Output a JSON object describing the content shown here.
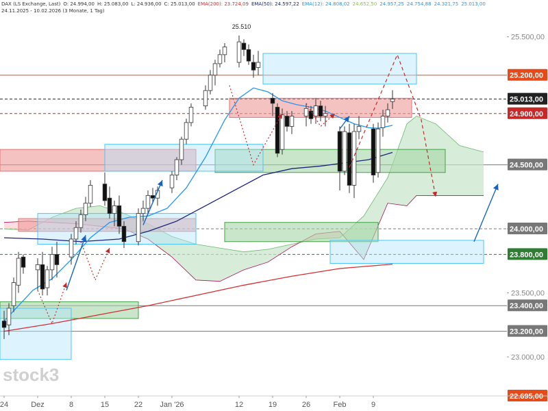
{
  "header": {
    "line1": [
      {
        "text": "DAX (LS Exchange, Last)",
        "color": "#333333"
      },
      {
        "text": "O: 24.994,00",
        "color": "#333333"
      },
      {
        "text": "H: 25.083,00",
        "color": "#333333"
      },
      {
        "text": "L: 24.936,00",
        "color": "#333333"
      },
      {
        "text": "C: 25.013,00",
        "color": "#333333"
      },
      {
        "text": "EMA(200): 23.724,09",
        "color": "#d32f2f"
      },
      {
        "text": "EMA(50): 24.597,22",
        "color": "#1a237e"
      },
      {
        "text": "EMA(12): 24.808,02",
        "color": "#2196f3"
      },
      {
        "text": "24.652,50",
        "color": "#8bc34a"
      },
      {
        "text": "24.957,25",
        "color": "#2196f3"
      },
      {
        "text": "24.754,88",
        "color": "#2196f3"
      },
      {
        "text": "24.321,75",
        "color": "#2196f3"
      },
      {
        "text": "25.013,00",
        "color": "#2196f3"
      }
    ],
    "line2": "24.11.2025 - 10.02.2026   (3 Monate, 1 Tag)"
  },
  "watermark": "stock3",
  "chart_data": {
    "type": "candlestick",
    "instrument": "DAX",
    "ylim": [
      22695,
      25680
    ],
    "y_ticks": [
      "25.500,00",
      "25.000,00",
      "24.500,00",
      "24.000,00",
      "23.500,00",
      "23.000,00"
    ],
    "y_tick_values": [
      25500,
      25000,
      24500,
      24000,
      23500,
      23000
    ],
    "x_ticks": [
      {
        "label": "24",
        "day": 0
      },
      {
        "label": "Dez",
        "day": 7
      },
      {
        "label": "8",
        "day": 14
      },
      {
        "label": "15",
        "day": 21
      },
      {
        "label": "22",
        "day": 28
      },
      {
        "label": "Jan '26",
        "day": 35
      },
      {
        "label": "12",
        "day": 49
      },
      {
        "label": "19",
        "day": 56
      },
      {
        "label": "26",
        "day": 63
      },
      {
        "label": "Feb",
        "day": 70
      },
      {
        "label": "9",
        "day": 77
      }
    ],
    "max_label": {
      "text": "25.510",
      "day": 49.5,
      "value": 25510
    },
    "candles": [
      {
        "d": 0,
        "o": 23280,
        "h": 23360,
        "l": 23140,
        "c": 23230
      },
      {
        "d": 1,
        "o": 23250,
        "h": 23420,
        "l": 23170,
        "c": 23380
      },
      {
        "d": 2,
        "o": 23400,
        "h": 23620,
        "l": 23350,
        "c": 23580
      },
      {
        "d": 3,
        "o": 23560,
        "h": 23820,
        "l": 23500,
        "c": 23770
      },
      {
        "d": 4,
        "o": 23780,
        "h": 23800,
        "l": 23650,
        "c": 23700
      },
      {
        "d": 7,
        "o": 23680,
        "h": 23770,
        "l": 23520,
        "c": 23720
      },
      {
        "d": 8,
        "o": 23720,
        "h": 23820,
        "l": 23480,
        "c": 23530
      },
      {
        "d": 9,
        "o": 23540,
        "h": 23710,
        "l": 23480,
        "c": 23680
      },
      {
        "d": 10,
        "o": 23680,
        "h": 23860,
        "l": 23600,
        "c": 23800
      },
      {
        "d": 11,
        "o": 23800,
        "h": 23900,
        "l": 23620,
        "c": 23720
      },
      {
        "d": 14,
        "o": 23780,
        "h": 23960,
        "l": 23720,
        "c": 23920
      },
      {
        "d": 15,
        "o": 23920,
        "h": 24060,
        "l": 23880,
        "c": 24010
      },
      {
        "d": 16,
        "o": 24010,
        "h": 24150,
        "l": 23970,
        "c": 24110
      },
      {
        "d": 17,
        "o": 24110,
        "h": 24250,
        "l": 24060,
        "c": 24200
      },
      {
        "d": 18,
        "o": 24200,
        "h": 24380,
        "l": 24170,
        "c": 24340
      },
      {
        "d": 21,
        "o": 24350,
        "h": 24440,
        "l": 24180,
        "c": 24220
      },
      {
        "d": 22,
        "o": 24240,
        "h": 24330,
        "l": 24080,
        "c": 24120
      },
      {
        "d": 23,
        "o": 24120,
        "h": 24220,
        "l": 24020,
        "c": 24180
      },
      {
        "d": 24,
        "o": 24180,
        "h": 24260,
        "l": 23960,
        "c": 24020
      },
      {
        "d": 25,
        "o": 24020,
        "h": 24060,
        "l": 23850,
        "c": 23900
      },
      {
        "d": 28,
        "o": 23900,
        "h": 24160,
        "l": 23870,
        "c": 24120
      },
      {
        "d": 29,
        "o": 24120,
        "h": 24220,
        "l": 24060,
        "c": 24160
      },
      {
        "d": 30,
        "o": 24160,
        "h": 24300,
        "l": 24120,
        "c": 24260
      },
      {
        "d": 31,
        "o": 24260,
        "h": 24320,
        "l": 24200,
        "c": 24240
      },
      {
        "d": 32,
        "o": 24240,
        "h": 24330,
        "l": 24180,
        "c": 24300
      },
      {
        "d": 35,
        "o": 24320,
        "h": 24450,
        "l": 24280,
        "c": 24420
      },
      {
        "d": 36,
        "o": 24420,
        "h": 24560,
        "l": 24380,
        "c": 24540
      },
      {
        "d": 37,
        "o": 24540,
        "h": 24720,
        "l": 24500,
        "c": 24700
      },
      {
        "d": 38,
        "o": 24700,
        "h": 24860,
        "l": 24660,
        "c": 24830
      },
      {
        "d": 39,
        "o": 24830,
        "h": 24980,
        "l": 24800,
        "c": 24950
      },
      {
        "d": 42,
        "o": 24960,
        "h": 25120,
        "l": 24930,
        "c": 25080
      },
      {
        "d": 43,
        "o": 25080,
        "h": 25240,
        "l": 25050,
        "c": 25200
      },
      {
        "d": 44,
        "o": 25200,
        "h": 25320,
        "l": 25120,
        "c": 25290
      },
      {
        "d": 45,
        "o": 25290,
        "h": 25400,
        "l": 25260,
        "c": 25360
      },
      {
        "d": 46,
        "o": 25360,
        "h": 25450,
        "l": 25300,
        "c": 25420
      },
      {
        "d": 49,
        "o": 25300,
        "h": 25510,
        "l": 25260,
        "c": 25460
      },
      {
        "d": 50,
        "o": 25450,
        "h": 25480,
        "l": 25350,
        "c": 25400
      },
      {
        "d": 51,
        "o": 25400,
        "h": 25440,
        "l": 25280,
        "c": 25310
      },
      {
        "d": 52,
        "o": 25300,
        "h": 25360,
        "l": 25180,
        "c": 25240
      },
      {
        "d": 53,
        "o": 25260,
        "h": 25390,
        "l": 25200,
        "c": 25300
      },
      {
        "d": 56,
        "o": 25020,
        "h": 25060,
        "l": 24880,
        "c": 24980
      },
      {
        "d": 57,
        "o": 24950,
        "h": 24980,
        "l": 24560,
        "c": 24590
      },
      {
        "d": 58,
        "o": 24620,
        "h": 24940,
        "l": 24580,
        "c": 24890
      },
      {
        "d": 59,
        "o": 24880,
        "h": 24920,
        "l": 24760,
        "c": 24800
      },
      {
        "d": 60,
        "o": 24800,
        "h": 24920,
        "l": 24740,
        "c": 24880
      },
      {
        "d": 63,
        "o": 24880,
        "h": 24980,
        "l": 24800,
        "c": 24940
      },
      {
        "d": 64,
        "o": 24920,
        "h": 24960,
        "l": 24820,
        "c": 24860
      },
      {
        "d": 65,
        "o": 24880,
        "h": 25020,
        "l": 24820,
        "c": 24960
      },
      {
        "d": 66,
        "o": 24960,
        "h": 25000,
        "l": 24840,
        "c": 24880
      },
      {
        "d": 67,
        "o": 24880,
        "h": 24960,
        "l": 24800,
        "c": 24900
      },
      {
        "d": 70,
        "o": 24760,
        "h": 24800,
        "l": 24300,
        "c": 24450
      },
      {
        "d": 71,
        "o": 24450,
        "h": 24800,
        "l": 24420,
        "c": 24760
      },
      {
        "d": 72,
        "o": 24750,
        "h": 24820,
        "l": 24280,
        "c": 24340
      },
      {
        "d": 73,
        "o": 24340,
        "h": 24820,
        "l": 24240,
        "c": 24760
      },
      {
        "d": 74,
        "o": 24760,
        "h": 24880,
        "l": 24700,
        "c": 24800
      },
      {
        "d": 77,
        "o": 24780,
        "h": 24820,
        "l": 24360,
        "c": 24420
      },
      {
        "d": 78,
        "o": 24440,
        "h": 24830,
        "l": 24400,
        "c": 24780
      },
      {
        "d": 79,
        "o": 24790,
        "h": 24930,
        "l": 24720,
        "c": 24880
      },
      {
        "d": 80,
        "o": 24880,
        "h": 24980,
        "l": 24830,
        "c": 24930
      },
      {
        "d": 81,
        "o": 24994,
        "h": 25083,
        "l": 24936,
        "c": 25013
      }
    ],
    "series": [
      {
        "name": "EMA(200)",
        "color": "#d32f2f",
        "x": [
          0,
          10,
          20,
          30,
          40,
          50,
          60,
          70,
          81
        ],
        "y": [
          23200,
          23260,
          23330,
          23400,
          23480,
          23560,
          23630,
          23690,
          23724
        ]
      },
      {
        "name": "EMA(50)",
        "color": "#1a237e",
        "x": [
          0,
          8,
          16,
          24,
          30,
          36,
          42,
          48,
          54,
          60,
          66,
          72,
          76,
          81
        ],
        "y": [
          23930,
          23920,
          23900,
          23920,
          23980,
          24060,
          24180,
          24300,
          24420,
          24470,
          24490,
          24520,
          24540,
          24597
        ]
      },
      {
        "name": "EMA(12)",
        "color": "#2196f3",
        "x": [
          0,
          6,
          10,
          14,
          18,
          22,
          26,
          30,
          34,
          38,
          42,
          46,
          49,
          52,
          55,
          58,
          61,
          64,
          67,
          70,
          73,
          76,
          78,
          81
        ],
        "y": [
          23280,
          23520,
          23610,
          23760,
          23930,
          24050,
          24090,
          24100,
          24160,
          24320,
          24560,
          24850,
          25020,
          25100,
          25070,
          25000,
          24970,
          24950,
          24920,
          24870,
          24820,
          24790,
          24785,
          24808
        ]
      }
    ],
    "levels": [
      {
        "value": 25200,
        "label": "25.200,00",
        "color": "#e64a19",
        "style": "solid"
      },
      {
        "value": 25013,
        "label": "25.013,00",
        "color": "#222222",
        "style": "dashed"
      },
      {
        "value": 24900,
        "label": "24.900,00",
        "color": "#c62828",
        "style": "dashed"
      },
      {
        "value": 24500,
        "label": "24.500,00",
        "color": "#777777",
        "style": "solid"
      },
      {
        "value": 24000,
        "label": "24.000,00",
        "color": "#777777",
        "style": "dashed"
      },
      {
        "value": 23800,
        "label": "23.800,00",
        "color": "#2e7d32",
        "style": "dashed"
      },
      {
        "value": 23400,
        "label": "23.400,00",
        "color": "#777777",
        "style": "solid"
      },
      {
        "value": 23200,
        "label": "23.200,00",
        "color": "#777777",
        "style": "solid"
      },
      {
        "value": 22695,
        "label": "22.695,00",
        "color": "#e64a19",
        "style": "solid"
      }
    ],
    "zones": [
      {
        "kind": "supply",
        "color": "#ef9a9a",
        "x0": -1,
        "x1": 40,
        "y0": 24450,
        "y1": 24620
      },
      {
        "kind": "supply",
        "color": "#ef9a9a",
        "x0": 3,
        "x1": 40,
        "y0": 23980,
        "y1": 24080
      },
      {
        "kind": "supply",
        "color": "#ef9a9a",
        "x0": 47,
        "x1": 85,
        "y0": 24870,
        "y1": 25020
      },
      {
        "kind": "demand",
        "color": "#a5d6a7",
        "x0": 44,
        "x1": 92,
        "y0": 24440,
        "y1": 24620
      },
      {
        "kind": "demand",
        "color": "#a5d6a7",
        "x0": 46,
        "x1": 78,
        "y0": 23900,
        "y1": 24050
      },
      {
        "kind": "demand",
        "color": "#a5d6a7",
        "x0": -1,
        "x1": 28,
        "y0": 23300,
        "y1": 23430
      },
      {
        "kind": "target",
        "color": "#b3e5fc",
        "x0": 54,
        "x1": 86,
        "y0": 25130,
        "y1": 25370
      },
      {
        "kind": "target",
        "color": "#b3e5fc",
        "x0": 21,
        "x1": 54,
        "y0": 24450,
        "y1": 24660
      },
      {
        "kind": "target",
        "color": "#b3e5fc",
        "x0": 7,
        "x1": 40,
        "y0": 23880,
        "y1": 24120
      },
      {
        "kind": "target",
        "color": "#b3e5fc",
        "x0": -1,
        "x1": 14,
        "y0": 22980,
        "y1": 23380
      },
      {
        "kind": "target",
        "color": "#b3e5fc",
        "x0": 68,
        "x1": 100,
        "y0": 23730,
        "y1": 23910
      }
    ],
    "cloud": {
      "upper": {
        "x": [
          0,
          5,
          10,
          15,
          20,
          25,
          30,
          35,
          40,
          45,
          50,
          55,
          60,
          65,
          70,
          75,
          80,
          84,
          86,
          90,
          95,
          100
        ],
        "y": [
          24000,
          23990,
          24090,
          24160,
          24180,
          24120,
          24040,
          23940,
          23880,
          23850,
          23820,
          23840,
          23880,
          23920,
          23930,
          24100,
          24400,
          24820,
          24880,
          24820,
          24650,
          24600
        ]
      },
      "lower": {
        "x": [
          0,
          5,
          10,
          15,
          20,
          25,
          30,
          35,
          40,
          45,
          50,
          55,
          60,
          65,
          70,
          75,
          80,
          84,
          86,
          90,
          95,
          100
        ],
        "y": [
          24050,
          24060,
          24050,
          24040,
          24020,
          24000,
          23920,
          23780,
          23600,
          23590,
          23680,
          23740,
          23860,
          23960,
          23980,
          23760,
          24200,
          24180,
          24260,
          24260,
          24260,
          24260
        ]
      }
    },
    "projections": [
      {
        "color": "#c62828",
        "style": "dashed",
        "points": [
          [
            72,
            24480
          ],
          [
            82,
            25360
          ],
          [
            87,
            24850
          ],
          [
            90,
            24250
          ]
        ]
      },
      {
        "color": "#c62828",
        "style": "dotted",
        "points": [
          [
            47,
            25120
          ],
          [
            52,
            24500
          ],
          [
            58,
            24900
          ]
        ]
      },
      {
        "color": "#c62828",
        "style": "dotted",
        "points": [
          [
            16,
            23900
          ],
          [
            19,
            23600
          ],
          [
            22,
            23850
          ]
        ]
      },
      {
        "color": "#c62828",
        "style": "dotted",
        "points": [
          [
            7,
            23520
          ],
          [
            10,
            23260
          ],
          [
            13,
            23580
          ]
        ]
      },
      {
        "color": "#c62828",
        "style": "dotted",
        "points": [
          [
            63,
            24980
          ],
          [
            66,
            24800
          ],
          [
            69,
            24900
          ]
        ]
      }
    ],
    "arrows": [
      {
        "color": "#1565c0",
        "from": [
          13,
          23520
        ],
        "to": [
          17,
          23950
        ]
      },
      {
        "color": "#1565c0",
        "from": [
          29,
          24030
        ],
        "to": [
          33,
          24380
        ]
      },
      {
        "color": "#1565c0",
        "from": [
          70,
          24780
        ],
        "to": [
          72,
          24880
        ]
      },
      {
        "color": "#1565c0",
        "from": [
          98,
          23900
        ],
        "to": [
          103,
          24350
        ]
      }
    ]
  }
}
